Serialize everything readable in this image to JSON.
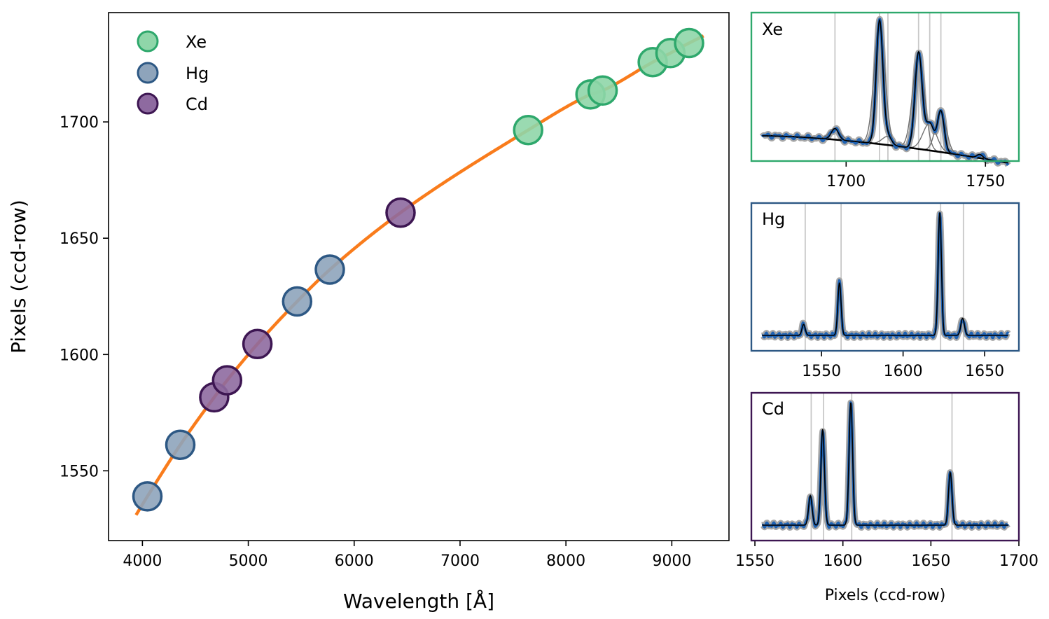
{
  "chart_data": [
    {
      "type": "scatter",
      "xlabel": "Wavelength [Å]",
      "ylabel": "Pixels (ccd-row)",
      "xlim": [
        3680,
        9540
      ],
      "ylim": [
        1520,
        1747
      ],
      "xticks": [
        4000,
        5000,
        6000,
        7000,
        8000,
        9000
      ],
      "yticks": [
        1550,
        1600,
        1650,
        1700
      ],
      "legend_position": "upper-left",
      "series": [
        {
          "name": "Xe",
          "color": "#2ea86c",
          "fill": "#8fd6a9",
          "points": [
            [
              7643,
              1696.5
            ],
            [
              8232,
              1711.8
            ],
            [
              8347,
              1713.5
            ],
            [
              8820,
              1725.7
            ],
            [
              8987,
              1729.6
            ],
            [
              9163,
              1733.9
            ]
          ]
        },
        {
          "name": "Hg",
          "color": "#2d5884",
          "fill": "#8ea4bb",
          "points": [
            [
              4047,
              1539.0
            ],
            [
              4358,
              1561.2
            ],
            [
              5461,
              1622.8
            ],
            [
              5770,
              1636.5
            ]
          ]
        },
        {
          "name": "Cd",
          "color": "#3d1652",
          "fill": "#8e6aa0",
          "points": [
            [
              4678,
              1581.6
            ],
            [
              4800,
              1588.9
            ],
            [
              5086,
              1604.5
            ],
            [
              6438,
              1661.0
            ]
          ]
        }
      ],
      "fit": {
        "color": "#f97c1c",
        "x_range": [
          3940,
          9300
        ],
        "points": [
          [
            3940,
            1531
          ],
          [
            4047,
            1539.0
          ],
          [
            4358,
            1561.2
          ],
          [
            4678,
            1581.6
          ],
          [
            4800,
            1588.9
          ],
          [
            5086,
            1604.5
          ],
          [
            5461,
            1622.8
          ],
          [
            5770,
            1636.5
          ],
          [
            6438,
            1661.0
          ],
          [
            7643,
            1696.5
          ],
          [
            8232,
            1711.8
          ],
          [
            8347,
            1713.5
          ],
          [
            8820,
            1725.7
          ],
          [
            8987,
            1729.6
          ],
          [
            9163,
            1733.9
          ],
          [
            9300,
            1737
          ]
        ]
      }
    },
    {
      "type": "line",
      "title": "Xe",
      "xlim": [
        1666,
        1762
      ],
      "xticks": [
        1700,
        1750
      ],
      "frame_color": "#2ea86c",
      "baseline": {
        "start": 0.08,
        "end": -0.14,
        "curvature": 0.05
      },
      "peaks": [
        [
          1696,
          0.09,
          1.3
        ],
        [
          1712,
          1.0,
          1.2
        ],
        [
          1715,
          0.07,
          1.3
        ],
        [
          1726,
          0.78,
          1.3
        ],
        [
          1730,
          0.22,
          1.5
        ],
        [
          1734,
          0.33,
          1.2
        ],
        [
          1748,
          0.03,
          1.0
        ]
      ],
      "line_markers": [
        1696,
        1712,
        1715,
        1726,
        1730,
        1734
      ]
    },
    {
      "type": "line",
      "title": "Hg",
      "xlim": [
        1507,
        1671
      ],
      "xticks": [
        1550,
        1600,
        1650
      ],
      "frame_color": "#2d5884",
      "baseline": {
        "start": 0.0,
        "end": 0.0,
        "curvature": 0.0
      },
      "peaks": [
        [
          1539,
          0.09,
          1.0
        ],
        [
          1561,
          0.43,
          1.0
        ],
        [
          1622.5,
          1.0,
          1.0
        ],
        [
          1636.5,
          0.14,
          1.1
        ]
      ],
      "line_markers": [
        1540,
        1562,
        1623,
        1637
      ]
    },
    {
      "type": "line",
      "title": "Cd",
      "xlabel": "Pixels (ccd-row)",
      "xlim": [
        1548,
        1700
      ],
      "xticks": [
        1550,
        1600,
        1650,
        1700
      ],
      "frame_color": "#3d1652",
      "baseline": {
        "start": 0.0,
        "end": 0.0,
        "curvature": 0.0
      },
      "peaks": [
        [
          1581.5,
          0.24,
          1.0
        ],
        [
          1588.5,
          0.78,
          1.0
        ],
        [
          1604.5,
          1.0,
          1.0
        ],
        [
          1661,
          0.43,
          1.0
        ]
      ],
      "line_markers": [
        1582,
        1589,
        1605,
        1662
      ]
    }
  ],
  "colors": {
    "spectrum": "#1f63b4",
    "model": "#000000",
    "spectrum_band": "#a6a6a6",
    "marker_line": "#c8c8c8"
  }
}
